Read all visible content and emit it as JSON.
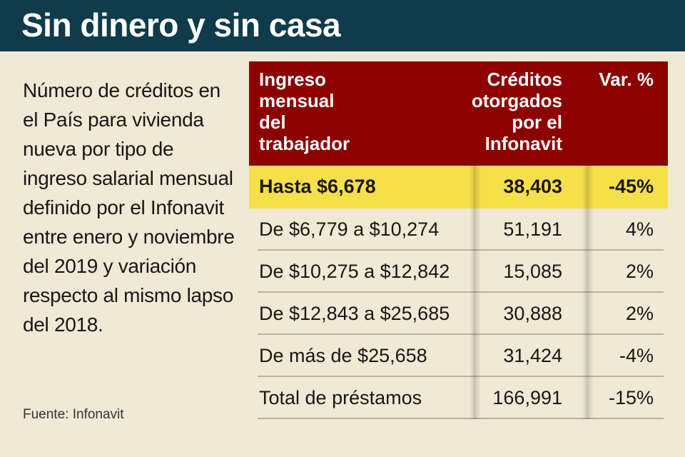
{
  "title": "Sin dinero y sin casa",
  "description": "Número de créditos en el País para vivienda nueva por tipo de ingreso salarial mensual definido por el Infonavit entre enero y noviembre del 2019 y variación respecto al mismo lapso del 2018.",
  "source": "Fuente: Infonavit",
  "colors": {
    "title_bar": "#0f3b4b",
    "header": "#8c0000",
    "highlight": "#f5e04a",
    "background": "#efe9d6"
  },
  "chart_data": {
    "type": "table",
    "columns": [
      "Ingreso mensual\ndel\ntrabajador",
      "Créditos\notorgados\npor el\nInfonavit",
      "Var. %"
    ],
    "header_display": [
      "Ingreso\nmensual\ndel\ntrabajador",
      "Créditos\notorgados\npor el\nInfonavit",
      "Var. %"
    ],
    "rows": [
      {
        "label": "Hasta $6,678",
        "credits": "38,403",
        "var": "-45%",
        "highlight": true
      },
      {
        "label": "De $6,779 a $10,274",
        "credits": "51,191",
        "var": "4%"
      },
      {
        "label": "De $10,275 a $12,842",
        "credits": "15,085",
        "var": "2%"
      },
      {
        "label": "De $12,843 a $25,685",
        "credits": "30,888",
        "var": "2%"
      },
      {
        "label": "De más de $25,658",
        "credits": "31,424",
        "var": "-4%"
      },
      {
        "label": "Total de préstamos",
        "credits": "166,991",
        "var": "-15%"
      }
    ]
  }
}
